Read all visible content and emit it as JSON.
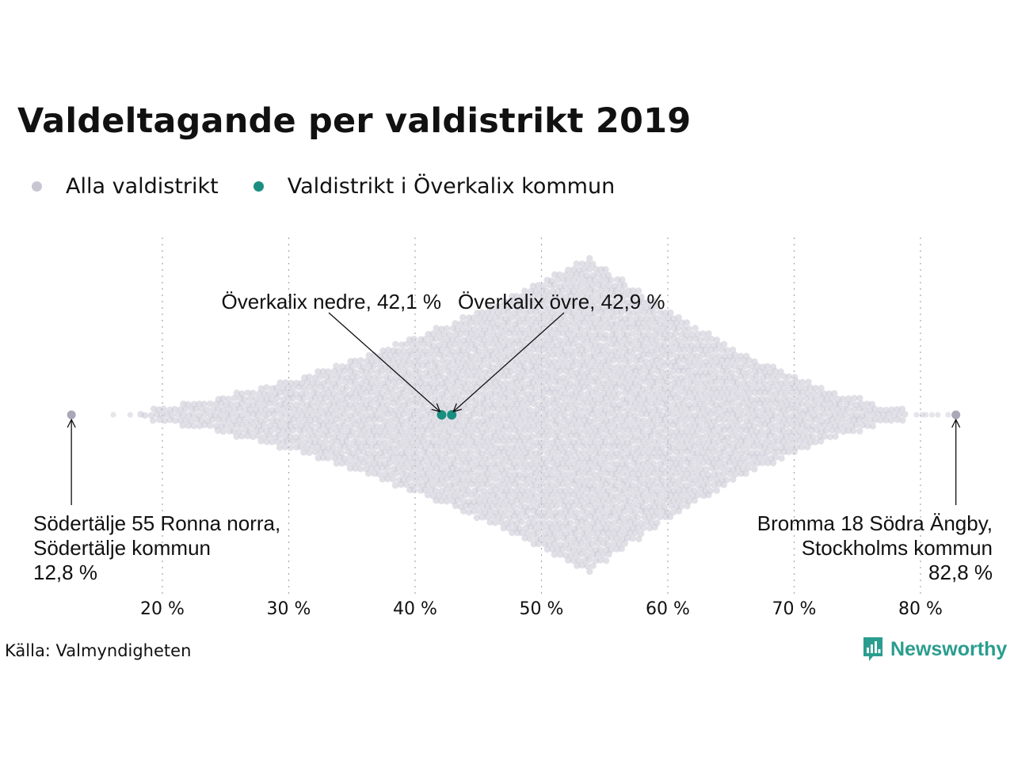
{
  "chart_data": {
    "type": "scatter",
    "subtype": "beeswarm",
    "title": "Valdeltagande per valdistrikt 2019",
    "xlabel": "",
    "ylabel": "",
    "xlim": [
      11.5,
      85.5
    ],
    "x_ticks": [
      20,
      30,
      40,
      50,
      60,
      70,
      80
    ],
    "x_tick_labels": [
      "20 %",
      "30 %",
      "40 %",
      "50 %",
      "60 %",
      "70 %",
      "80 %"
    ],
    "grid": "vertical-dotted",
    "legend_position": "top-left",
    "series": [
      {
        "name": "Alla valdistrikt",
        "color": "#c8c6d3",
        "distribution": {
          "min": 12.8,
          "max": 82.8,
          "mode": 53.7
        },
        "values": [
          12.8,
          82.8
        ]
      },
      {
        "name": "Valdistrikt i Överkalix kommun",
        "color": "#1a8f80",
        "values": [
          42.1,
          42.9
        ]
      }
    ],
    "annotations": [
      {
        "label": "Överkalix nedre, 42,1 %",
        "x": 42.1
      },
      {
        "label": "Överkalix övre, 42,9 %",
        "x": 42.9
      },
      {
        "lines": [
          "Södertälje 55 Ronna norra,",
          "Södertälje kommun",
          "12,8 %"
        ],
        "x": 12.8
      },
      {
        "lines": [
          "Bromma 18 Södra Ängby,",
          "Stockholms kommun",
          "82,8 %"
        ],
        "x": 82.8
      }
    ]
  },
  "source": "Källa: Valmyndigheten",
  "brand": {
    "name": "Newsworthy",
    "icon": "bar-chart-bubble-icon",
    "color": "#2a9d8f"
  }
}
